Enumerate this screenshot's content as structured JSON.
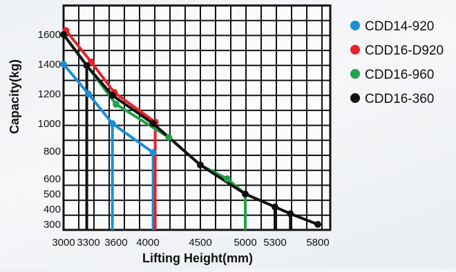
{
  "chart_data": {
    "type": "line",
    "title": "",
    "xlabel": "Lifting Height(mm)",
    "ylabel": "Capacity(kg)",
    "xlim": [
      3000,
      5900
    ],
    "ylim": [
      250,
      1750
    ],
    "x_ticks": [
      3000,
      3300,
      3600,
      4000,
      4500,
      5000,
      5300,
      5800
    ],
    "x_tick_labels": [
      "3000",
      "3300",
      "3600",
      "4000",
      "4500",
      "5000",
      "5300",
      "5800"
    ],
    "y_ticks": [
      300,
      400,
      500,
      600,
      800,
      1000,
      1200,
      1400,
      1600
    ],
    "y_tick_labels": [
      "300",
      "400",
      "500",
      "600",
      "800",
      "1000",
      "1200",
      "1400",
      "1600"
    ],
    "grid": true,
    "legend_position": "right",
    "series": [
      {
        "name": "CDD14-920",
        "color": "#1a8fd8",
        "x": [
          3000,
          3300,
          3560,
          4050
        ],
        "y": [
          1400,
          1200,
          1000,
          790
        ],
        "drop_line_x": [
          3560,
          4050
        ]
      },
      {
        "name": "CDD16-D920",
        "color": "#e3232a",
        "x": [
          3030,
          3330,
          3580,
          4070
        ],
        "y": [
          1620,
          1415,
          1210,
          1010
        ],
        "drop_line_x": [
          4070
        ]
      },
      {
        "name": "CDD16-960",
        "color": "#23a04a",
        "x": [
          3000,
          3600,
          4200,
          4500,
          4800,
          5000
        ],
        "y": [
          1600,
          1130,
          900,
          700,
          600,
          500
        ],
        "drop_line_x": [
          5000
        ]
      },
      {
        "name": "CDD16-360",
        "color": "#111111",
        "x": [
          3000,
          3280,
          3560,
          4050,
          4500,
          5000,
          5300,
          5480,
          5800
        ],
        "y": [
          1600,
          1390,
          1190,
          1000,
          700,
          500,
          415,
          370,
          300
        ],
        "drop_line_x": [
          3280,
          5300,
          5480
        ]
      }
    ]
  }
}
